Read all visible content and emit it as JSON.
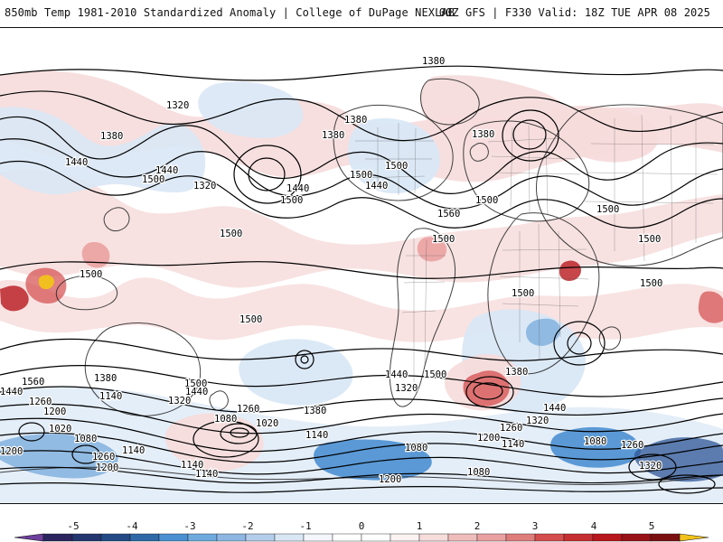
{
  "header": {
    "title_left": "850mb Temp 1981-2010 Standardized Anomaly | College of DuPage NEXLAB",
    "title_right": "00Z GFS | F330 Valid: 18Z TUE APR 08 2025"
  },
  "map": {
    "field": "850mb standardized temperature anomaly with height contours",
    "contour_labels": [
      "1380",
      "1320",
      "1380",
      "1440",
      "1500",
      "1320",
      "1440",
      "1500",
      "1380",
      "1500",
      "1440",
      "1560",
      "1380",
      "1500",
      "1440",
      "1380",
      "1500",
      "1500",
      "1500",
      "1500",
      "1500",
      "1500",
      "1500",
      "1500",
      "1500",
      "1560",
      "1440",
      "1260",
      "1200",
      "1380",
      "1140",
      "1500",
      "1440",
      "1320",
      "1260",
      "1080",
      "1020",
      "1020",
      "1080",
      "1200",
      "1260",
      "1140",
      "1380",
      "1440",
      "1320",
      "1080",
      "1140",
      "1200",
      "1140",
      "1140",
      "1200",
      "1080",
      "1500",
      "1380",
      "1440",
      "1260",
      "1320",
      "1200",
      "1140",
      "1080",
      "1260",
      "1320"
    ],
    "anomaly_palette": {
      "neg5": "#6e3f9c",
      "neg4": "#2f5597",
      "neg3": "#4a8fd1",
      "neg2": "#8db7e2",
      "neg1": "#d9e7f5",
      "zero": "#ffffff",
      "pos1": "#f7dcdc",
      "pos2": "#eaa1a1",
      "pos3": "#d44c4c",
      "pos4": "#b8181d",
      "pos5": "#7a0f11",
      "extreme": "#f2c21b"
    }
  },
  "colorbar": {
    "ticks": [
      "-5",
      "-4",
      "-3",
      "-2",
      "-1",
      "0",
      "1",
      "2",
      "3",
      "4",
      "5"
    ]
  }
}
